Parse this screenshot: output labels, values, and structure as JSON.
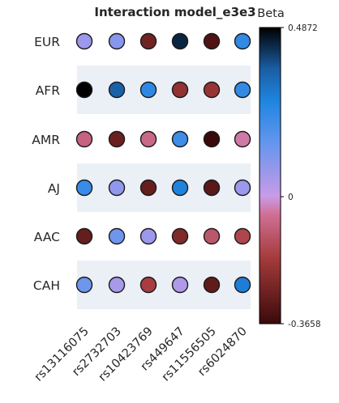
{
  "chart_data": {
    "type": "scatter",
    "title": "Interaction model_e3e3",
    "xlabel": "",
    "ylabel": "",
    "x_categories": [
      "rs13116075",
      "rs2732703",
      "rs10423769",
      "rs449647",
      "rs11556505",
      "rs6024870"
    ],
    "y_categories": [
      "EUR",
      "AFR",
      "AMR",
      "AJ",
      "AAC",
      "CAH"
    ],
    "colorbar": {
      "title": "Beta",
      "min": -0.3658,
      "max": 0.4872,
      "tick_labels": [
        "0.4872",
        "0",
        "-0.3658"
      ],
      "tick_values": [
        0.4872,
        0,
        -0.3658
      ]
    },
    "values": [
      [
        0.07,
        0.1,
        -0.27,
        0.44,
        -0.33,
        0.24
      ],
      [
        0.4872,
        0.36,
        0.25,
        -0.21,
        -0.2,
        0.24
      ],
      [
        -0.08,
        -0.28,
        -0.07,
        0.22,
        -0.3658,
        -0.04
      ],
      [
        0.23,
        0.09,
        -0.29,
        0.28,
        -0.31,
        0.07
      ],
      [
        -0.29,
        0.14,
        0.07,
        -0.24,
        -0.11,
        -0.15
      ],
      [
        0.14,
        0.05,
        -0.17,
        0.04,
        -0.3,
        0.29
      ]
    ],
    "banded_rows": [
      "AFR",
      "AJ",
      "CAH"
    ],
    "colors": {
      "band": "#eaf0f6",
      "marker_edge": "#1a1a1a",
      "negative_end": "#3b0a0a",
      "neutral": "#c99be8",
      "positive_end": "#000000"
    }
  }
}
